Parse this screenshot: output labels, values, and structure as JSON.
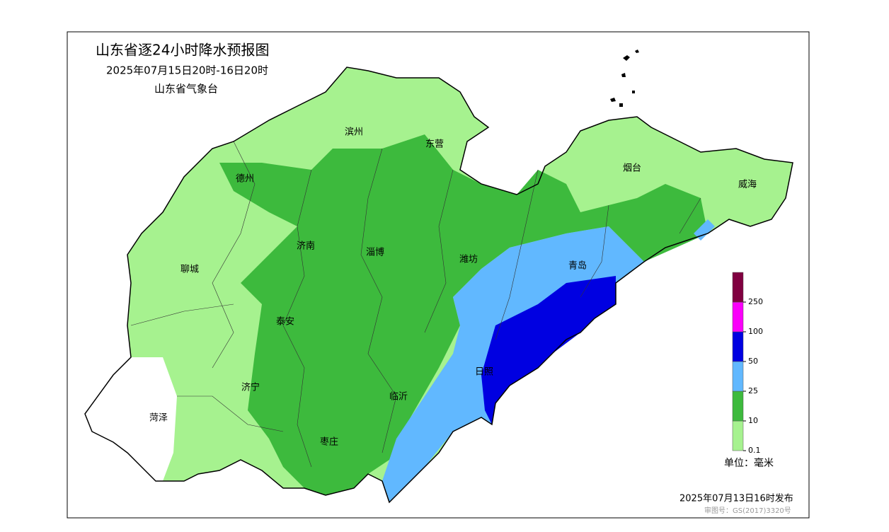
{
  "header": {
    "title": "山东省逐24小时降水预报图",
    "period": "2025年07月15日20时-16日20时",
    "agency": "山东省气象台"
  },
  "cities": [
    "滨州",
    "东营",
    "德州",
    "烟台",
    "威海",
    "济南",
    "淄博",
    "潍坊",
    "青岛",
    "聊城",
    "泰安",
    "日照",
    "济宁",
    "临沂",
    "菏泽",
    "枣庄"
  ],
  "legend": {
    "ticks": [
      0.1,
      10,
      25,
      50,
      100,
      250
    ],
    "colors": [
      "#a6f28f",
      "#3dba3d",
      "#61b8ff",
      "#0000e1",
      "#fa00fa",
      "#800040"
    ],
    "unit": "单位：毫米"
  },
  "footer": {
    "issued": "2025年07月13日16时发布",
    "approval": "审图号：GS(2017)3320号"
  }
}
